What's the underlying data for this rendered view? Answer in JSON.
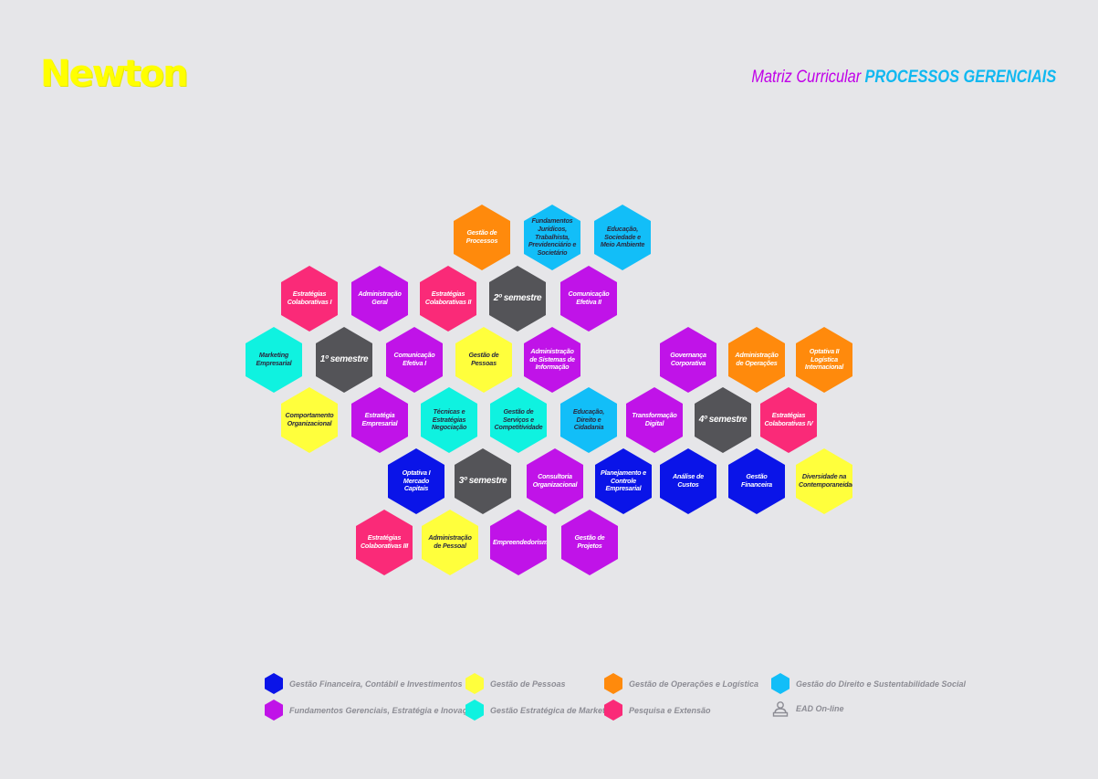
{
  "logo": "Newton",
  "title": {
    "prefix": "Matriz Curricular",
    "main": "PROCESSOS GERENCIAIS"
  },
  "hexes": [
    {
      "id": "gestao-processos",
      "label": "Gestão de Processos",
      "cat": "ope"
    },
    {
      "id": "fundamentos-juridicos",
      "label": "Fundamentos Jurídicos, Trabalhista, Previdenciário e Societário",
      "cat": "dir"
    },
    {
      "id": "educacao-sociedade",
      "label": "Educação, Sociedade e Meio Ambiente",
      "cat": "dir"
    },
    {
      "id": "estrategias-colab-1",
      "label": "Estratégias Colaborativas I",
      "cat": "pqe"
    },
    {
      "id": "administracao-geral",
      "label": "Administração Geral",
      "cat": "fun"
    },
    {
      "id": "estrategias-colab-2",
      "label": "Estratégias Colaborativas II",
      "cat": "pqe"
    },
    {
      "id": "semestre-2",
      "label": "2º semestre",
      "cat": "sem"
    },
    {
      "id": "comunicacao-efetiva-2",
      "label": "Comunicação Efetiva II",
      "cat": "fun"
    },
    {
      "id": "marketing-empresarial",
      "label": "Marketing Empresarial",
      "cat": "mkt"
    },
    {
      "id": "semestre-1",
      "label": "1º semestre",
      "cat": "sem"
    },
    {
      "id": "comunicacao-efetiva-1",
      "label": "Comunicação Efetiva I",
      "cat": "fun"
    },
    {
      "id": "gestao-pessoas",
      "label": "Gestão de Pessoas",
      "cat": "pes"
    },
    {
      "id": "admin-sistemas-informacao",
      "label": "Administração de Sistemas de Informação",
      "cat": "fun"
    },
    {
      "id": "governanca-corporativa",
      "label": "Governança Corporativa",
      "cat": "fun"
    },
    {
      "id": "administracao-operacoes",
      "label": "Administração de Operações",
      "cat": "ope"
    },
    {
      "id": "optativa-2",
      "label": "Optativa II Logística Internacional",
      "cat": "ope"
    },
    {
      "id": "comportamento-organizacional",
      "label": "Comportamento Organizacional",
      "cat": "pes"
    },
    {
      "id": "estrategia-empresarial",
      "label": "Estratégia Empresarial",
      "cat": "fun"
    },
    {
      "id": "tecnicas-negociacao",
      "label": "Técnicas e Estratégias Negociação",
      "cat": "mkt"
    },
    {
      "id": "gestao-servicos",
      "label": "Gestão de Serviços e Competitividade",
      "cat": "mkt"
    },
    {
      "id": "educacao-direito",
      "label": "Educação, Direito e Cidadania",
      "cat": "dir"
    },
    {
      "id": "transformacao-digital",
      "label": "Transformação Digital",
      "cat": "fun"
    },
    {
      "id": "semestre-4",
      "label": "4º semestre",
      "cat": "sem"
    },
    {
      "id": "estrategias-colab-4",
      "label": "Estratégias Colaborativas IV",
      "cat": "pqe"
    },
    {
      "id": "optativa-1",
      "label": "Optativa I Mercado Capitais",
      "cat": "fin"
    },
    {
      "id": "semestre-3",
      "label": "3º semestre",
      "cat": "sem"
    },
    {
      "id": "consultoria-organizacional",
      "label": "Consultoria Organizacional",
      "cat": "fun"
    },
    {
      "id": "planejamento-controle",
      "label": "Planejamento e Controle Empresarial",
      "cat": "fin"
    },
    {
      "id": "analise-custos",
      "label": "Análise de Custos",
      "cat": "fin"
    },
    {
      "id": "gestao-financeira",
      "label": "Gestão Financeira",
      "cat": "fin"
    },
    {
      "id": "diversidade",
      "label": "Diversidade na Contemporaneidade",
      "cat": "pes"
    },
    {
      "id": "estrategias-colab-3",
      "label": "Estratégias Colaborativas III",
      "cat": "pqe"
    },
    {
      "id": "administracao-pessoal",
      "label": "Administração de Pessoal",
      "cat": "pes"
    },
    {
      "id": "empreendedorismo",
      "label": "Empreendedorismo",
      "cat": "fun"
    },
    {
      "id": "gestao-projetos",
      "label": "Gestão de Projetos",
      "cat": "fun"
    }
  ],
  "legend": [
    {
      "label": "Gestão Financeira, Contábil e Investimentos",
      "color": "#0a14e8"
    },
    {
      "label": "Gestão de Pessoas",
      "color": "#ffff3c"
    },
    {
      "label": "Gestão de Operações e Logística",
      "color": "#ff8a0c"
    },
    {
      "label": "Gestão do Direito e Sustentabilidade Social",
      "color": "#12bef8"
    },
    {
      "label": "Fundamentos Gerenciais, Estratégia e Inovação",
      "color": "#c013e8"
    },
    {
      "label": "Gestão Estratégica de Marketing",
      "color": "#0ff2e0"
    },
    {
      "label": "Pesquisa e Extensão",
      "color": "#fa2a78"
    },
    {
      "label": "EAD On-line",
      "icon": "person-laptop-icon"
    }
  ]
}
